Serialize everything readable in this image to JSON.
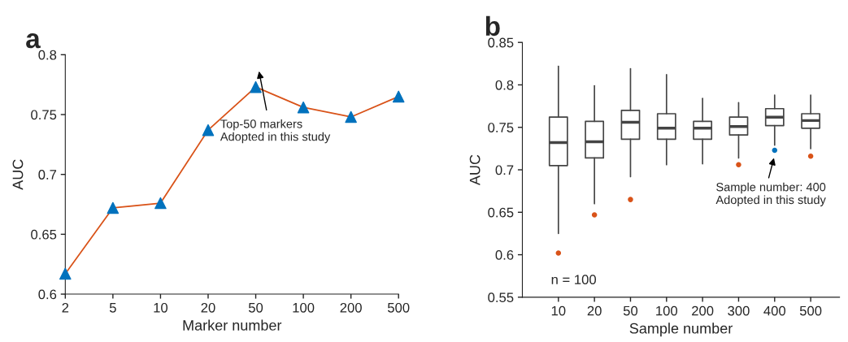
{
  "chart_data": [
    {
      "type": "line",
      "title": "a",
      "xlabel": "Marker number",
      "ylabel": "AUC",
      "categories": [
        "2",
        "5",
        "10",
        "20",
        "50",
        "100",
        "200",
        "500"
      ],
      "series": [
        {
          "type": "line",
          "color": "#d95319",
          "marker": "none",
          "values": [
            0.617,
            0.672,
            0.676,
            0.737,
            0.773,
            0.756,
            0.748,
            0.765
          ]
        },
        {
          "type": "scatter",
          "color": "#0072bd",
          "marker": "triangle",
          "values": [
            0.617,
            0.672,
            0.676,
            0.737,
            0.773,
            0.756,
            0.748,
            0.765
          ]
        }
      ],
      "ylim": [
        0.6,
        0.8
      ],
      "yticks": [
        0.6,
        0.65,
        0.7,
        0.75,
        0.8
      ],
      "grid": false,
      "annotations": [
        "Top-50 markers\nAdopted in this study"
      ]
    },
    {
      "type": "box",
      "title": "b",
      "xlabel": "Sample number",
      "ylabel": "AUC",
      "categories": [
        "10",
        "20",
        "50",
        "100",
        "200",
        "300",
        "400",
        "500"
      ],
      "boxes": [
        {
          "low": 0.625,
          "q1": 0.705,
          "median": 0.732,
          "q3": 0.762,
          "high": 0.822
        },
        {
          "low": 0.66,
          "q1": 0.714,
          "median": 0.733,
          "q3": 0.757,
          "high": 0.799
        },
        {
          "low": 0.692,
          "q1": 0.736,
          "median": 0.756,
          "q3": 0.77,
          "high": 0.819
        },
        {
          "low": 0.706,
          "q1": 0.736,
          "median": 0.749,
          "q3": 0.766,
          "high": 0.812
        },
        {
          "low": 0.707,
          "q1": 0.736,
          "median": 0.749,
          "q3": 0.757,
          "high": 0.784
        },
        {
          "low": 0.714,
          "q1": 0.741,
          "median": 0.751,
          "q3": 0.762,
          "high": 0.779
        },
        {
          "low": 0.729,
          "q1": 0.752,
          "median": 0.762,
          "q3": 0.772,
          "high": 0.788
        },
        {
          "low": 0.725,
          "q1": 0.749,
          "median": 0.758,
          "q3": 0.766,
          "high": 0.788
        }
      ],
      "series": [
        {
          "type": "scatter",
          "marker": "circle",
          "x": [
            "10",
            "20",
            "50",
            "300",
            "400",
            "500"
          ],
          "values": [
            0.602,
            0.647,
            0.665,
            0.706,
            0.723,
            0.716
          ],
          "colors": [
            "#d95319",
            "#d95319",
            "#d95319",
            "#d95319",
            "#0072bd",
            "#d95319"
          ]
        }
      ],
      "ylim": [
        0.55,
        0.85
      ],
      "yticks": [
        0.55,
        0.6,
        0.65,
        0.7,
        0.75,
        0.8,
        0.85
      ],
      "grid": false,
      "annotations": [
        "Sample number: 400\nAdopted in this study",
        "n = 100"
      ]
    }
  ]
}
